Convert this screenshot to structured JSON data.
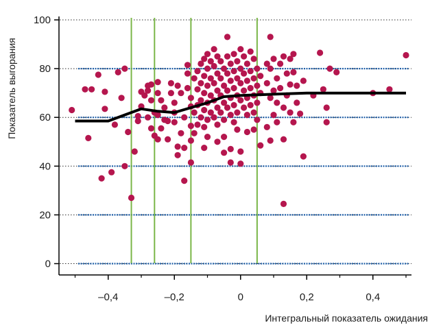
{
  "chart_data": {
    "type": "scatter",
    "xlabel": "Интегральный показатель ожидания",
    "ylabel": "Показатель выгорания",
    "xlim": [
      -0.55,
      0.52
    ],
    "ylim": [
      -2,
      102
    ],
    "x_ticks": [
      -0.4,
      -0.2,
      0,
      0.2,
      0.4
    ],
    "x_tick_labels": [
      "–0,4",
      "–0,2",
      "0",
      "0,2",
      "0,4"
    ],
    "y_ticks": [
      0,
      20,
      40,
      60,
      80,
      100
    ],
    "y_tick_labels": [
      "0",
      "20",
      "40",
      "60",
      "80",
      "100"
    ],
    "hlines": [
      0,
      20,
      40,
      60,
      80
    ],
    "vlines": [
      -0.33,
      -0.26,
      -0.15,
      0.05
    ],
    "colors": {
      "points": "#b5164e",
      "trend": "#000000",
      "vlines": "#7ab648",
      "hlines": "#1f5fa8"
    },
    "grid": "dotted horizontal lines at y ticks",
    "trend_line": {
      "x": [
        -0.5,
        -0.4,
        -0.35,
        -0.3,
        -0.25,
        -0.2,
        -0.15,
        -0.1,
        -0.05,
        0,
        0.1,
        0.2,
        0.3,
        0.5
      ],
      "y": [
        58.5,
        58.5,
        61,
        63.5,
        62.5,
        62,
        64,
        66,
        68.5,
        69,
        69.5,
        70,
        70,
        70
      ]
    },
    "series": [
      {
        "points": [
          [
            -0.51,
            63
          ],
          [
            -0.47,
            71.5
          ],
          [
            -0.45,
            71.5
          ],
          [
            -0.46,
            51.5
          ],
          [
            -0.43,
            77.5
          ],
          [
            -0.42,
            35
          ],
          [
            -0.41,
            70.5
          ],
          [
            -0.41,
            63.5
          ],
          [
            -0.39,
            37.5
          ],
          [
            -0.38,
            57
          ],
          [
            -0.37,
            78.5
          ],
          [
            -0.36,
            68
          ],
          [
            -0.35,
            80
          ],
          [
            -0.35,
            40
          ],
          [
            -0.34,
            54
          ],
          [
            -0.33,
            27
          ],
          [
            -0.32,
            46
          ],
          [
            -0.31,
            58.5
          ],
          [
            -0.31,
            60.5
          ],
          [
            -0.3,
            70.5
          ],
          [
            -0.3,
            64.5
          ],
          [
            -0.29,
            69
          ],
          [
            -0.28,
            71
          ],
          [
            -0.28,
            73
          ],
          [
            -0.28,
            60
          ],
          [
            -0.27,
            73.5
          ],
          [
            -0.27,
            67
          ],
          [
            -0.27,
            55.5
          ],
          [
            -0.26,
            62
          ],
          [
            -0.26,
            52.5
          ],
          [
            -0.25,
            51
          ],
          [
            -0.25,
            61
          ],
          [
            -0.25,
            70
          ],
          [
            -0.25,
            74.5
          ],
          [
            -0.24,
            67
          ],
          [
            -0.24,
            55.5
          ],
          [
            -0.23,
            64
          ],
          [
            -0.23,
            59
          ],
          [
            -0.22,
            58.5
          ],
          [
            -0.22,
            51
          ],
          [
            -0.21,
            74
          ],
          [
            -0.21,
            70
          ],
          [
            -0.2,
            66
          ],
          [
            -0.2,
            62
          ],
          [
            -0.2,
            58
          ],
          [
            -0.19,
            73
          ],
          [
            -0.19,
            48
          ],
          [
            -0.19,
            44.5
          ],
          [
            -0.18,
            70
          ],
          [
            -0.18,
            53.5
          ],
          [
            -0.17,
            60
          ],
          [
            -0.17,
            47.5
          ],
          [
            -0.17,
            34
          ],
          [
            -0.16,
            81.5
          ],
          [
            -0.16,
            78
          ],
          [
            -0.16,
            72
          ],
          [
            -0.15,
            68
          ],
          [
            -0.15,
            64.5
          ],
          [
            -0.15,
            56.5
          ],
          [
            -0.15,
            50.5
          ],
          [
            -0.15,
            41.5
          ],
          [
            -0.14,
            76
          ],
          [
            -0.14,
            62
          ],
          [
            -0.14,
            53.5
          ],
          [
            -0.13,
            79
          ],
          [
            -0.13,
            71.5
          ],
          [
            -0.13,
            65
          ],
          [
            -0.13,
            57
          ],
          [
            -0.12,
            82
          ],
          [
            -0.12,
            74
          ],
          [
            -0.12,
            67
          ],
          [
            -0.12,
            60
          ],
          [
            -0.11,
            84
          ],
          [
            -0.11,
            77
          ],
          [
            -0.11,
            70
          ],
          [
            -0.11,
            63
          ],
          [
            -0.11,
            56
          ],
          [
            -0.11,
            47.5
          ],
          [
            -0.1,
            86
          ],
          [
            -0.1,
            80
          ],
          [
            -0.1,
            73
          ],
          [
            -0.1,
            66
          ],
          [
            -0.1,
            59
          ],
          [
            -0.1,
            52
          ],
          [
            -0.09,
            83
          ],
          [
            -0.09,
            76
          ],
          [
            -0.09,
            69
          ],
          [
            -0.09,
            62
          ],
          [
            -0.08,
            88
          ],
          [
            -0.08,
            81
          ],
          [
            -0.08,
            74
          ],
          [
            -0.08,
            67
          ],
          [
            -0.08,
            60
          ],
          [
            -0.07,
            85
          ],
          [
            -0.07,
            78
          ],
          [
            -0.07,
            71
          ],
          [
            -0.07,
            64
          ],
          [
            -0.07,
            57
          ],
          [
            -0.07,
            50
          ],
          [
            -0.06,
            83
          ],
          [
            -0.06,
            76
          ],
          [
            -0.06,
            69
          ],
          [
            -0.06,
            62
          ],
          [
            -0.05,
            80
          ],
          [
            -0.05,
            73
          ],
          [
            -0.05,
            66
          ],
          [
            -0.05,
            59
          ],
          [
            -0.05,
            52
          ],
          [
            -0.05,
            45.5
          ],
          [
            -0.04,
            93
          ],
          [
            -0.04,
            85
          ],
          [
            -0.04,
            78
          ],
          [
            -0.04,
            71
          ],
          [
            -0.04,
            64
          ],
          [
            -0.03,
            82
          ],
          [
            -0.03,
            75
          ],
          [
            -0.03,
            68
          ],
          [
            -0.03,
            61
          ],
          [
            -0.03,
            47
          ],
          [
            -0.03,
            41.5
          ],
          [
            -0.02,
            86
          ],
          [
            -0.02,
            79
          ],
          [
            -0.02,
            72
          ],
          [
            -0.02,
            65
          ],
          [
            -0.02,
            58
          ],
          [
            -0.01,
            83
          ],
          [
            -0.01,
            76
          ],
          [
            -0.01,
            69
          ],
          [
            -0.01,
            62
          ],
          [
            -0.01,
            55
          ],
          [
            0.0,
            88
          ],
          [
            0.0,
            80
          ],
          [
            0.0,
            74
          ],
          [
            0.0,
            67
          ],
          [
            0.0,
            46
          ],
          [
            0.0,
            41
          ],
          [
            0.01,
            85
          ],
          [
            0.01,
            78
          ],
          [
            0.01,
            71
          ],
          [
            0.01,
            64
          ],
          [
            0.02,
            82
          ],
          [
            0.02,
            75
          ],
          [
            0.02,
            68
          ],
          [
            0.02,
            61
          ],
          [
            0.02,
            54
          ],
          [
            0.03,
            87
          ],
          [
            0.03,
            79
          ],
          [
            0.03,
            72
          ],
          [
            0.03,
            65
          ],
          [
            0.04,
            84
          ],
          [
            0.04,
            76
          ],
          [
            0.04,
            69
          ],
          [
            0.04,
            62
          ],
          [
            0.04,
            55
          ],
          [
            0.05,
            80
          ],
          [
            0.05,
            73
          ],
          [
            0.05,
            66
          ],
          [
            0.05,
            59
          ],
          [
            0.06,
            77
          ],
          [
            0.06,
            70
          ],
          [
            0.06,
            48.5
          ],
          [
            0.08,
            82
          ],
          [
            0.08,
            74
          ],
          [
            0.08,
            56
          ],
          [
            0.09,
            93
          ],
          [
            0.09,
            80
          ],
          [
            0.09,
            68
          ],
          [
            0.09,
            50.5
          ],
          [
            0.1,
            84
          ],
          [
            0.1,
            71
          ],
          [
            0.1,
            61
          ],
          [
            0.11,
            76
          ],
          [
            0.11,
            66
          ],
          [
            0.11,
            58
          ],
          [
            0.12,
            82
          ],
          [
            0.12,
            72
          ],
          [
            0.13,
            85
          ],
          [
            0.13,
            64
          ],
          [
            0.13,
            51
          ],
          [
            0.13,
            24.5
          ],
          [
            0.14,
            78
          ],
          [
            0.14,
            69
          ],
          [
            0.15,
            84
          ],
          [
            0.15,
            73.5
          ],
          [
            0.15,
            62
          ],
          [
            0.16,
            86
          ],
          [
            0.16,
            78.5
          ],
          [
            0.16,
            58
          ],
          [
            0.17,
            73
          ],
          [
            0.17,
            66
          ],
          [
            0.18,
            61.5
          ],
          [
            0.19,
            75
          ],
          [
            0.19,
            44
          ],
          [
            0.22,
            69
          ],
          [
            0.24,
            86.5
          ],
          [
            0.25,
            71.5
          ],
          [
            0.26,
            64
          ],
          [
            0.26,
            58
          ],
          [
            0.27,
            80
          ],
          [
            0.29,
            78.5
          ],
          [
            0.4,
            70
          ],
          [
            0.45,
            71.5
          ],
          [
            0.5,
            85.5
          ]
        ]
      }
    ]
  }
}
